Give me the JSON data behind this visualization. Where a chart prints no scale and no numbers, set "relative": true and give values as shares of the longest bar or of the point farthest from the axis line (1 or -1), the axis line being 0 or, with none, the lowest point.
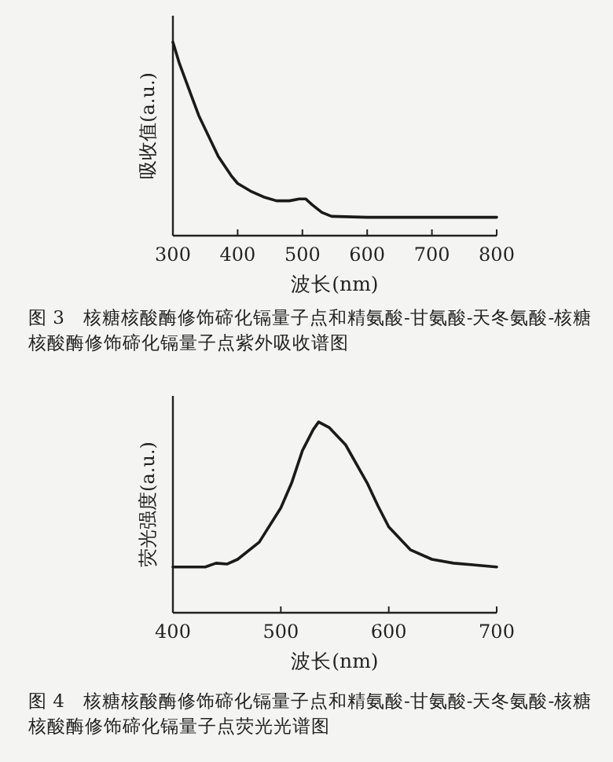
{
  "chart_data": [
    {
      "type": "line",
      "relative": true,
      "xlabel": "波长(nm)",
      "ylabel": "吸收值(a.u.)",
      "xlim": [
        300,
        800
      ],
      "xticks": [
        300,
        400,
        500,
        600,
        700,
        800
      ],
      "series": [
        {
          "color": "#1a1a1a",
          "x": [
            300,
            310,
            320,
            330,
            340,
            350,
            360,
            370,
            380,
            390,
            400,
            420,
            440,
            460,
            480,
            495,
            505,
            515,
            530,
            545,
            600,
            700,
            800
          ],
          "values": [
            1.0,
            0.89,
            0.8,
            0.71,
            0.62,
            0.55,
            0.48,
            0.41,
            0.36,
            0.31,
            0.27,
            0.23,
            0.2,
            0.18,
            0.18,
            0.19,
            0.19,
            0.16,
            0.12,
            0.1,
            0.095,
            0.095,
            0.095
          ]
        }
      ],
      "annotations": [
        "图 3　核糖核酸酶修饰碲化镉量子点和精氨酸-甘氨酸-天冬氨酸-核糖核酸酶修饰碲化镉量子点紫外吸收谱图"
      ]
    },
    {
      "type": "line",
      "relative": true,
      "xlabel": "波长(nm)",
      "ylabel": "荧光强度(a.u.)",
      "xlim": [
        400,
        700
      ],
      "xticks": [
        400,
        500,
        600,
        700
      ],
      "series": [
        {
          "color": "#1a1a1a",
          "x": [
            400,
            430,
            440,
            450,
            460,
            480,
            500,
            510,
            520,
            530,
            535,
            545,
            560,
            580,
            590,
            600,
            620,
            640,
            660,
            680,
            700
          ],
          "values": [
            0.24,
            0.24,
            0.26,
            0.255,
            0.28,
            0.37,
            0.55,
            0.68,
            0.85,
            0.96,
            1.0,
            0.97,
            0.88,
            0.68,
            0.56,
            0.45,
            0.33,
            0.28,
            0.26,
            0.25,
            0.24
          ]
        }
      ],
      "annotations": [
        "图 4　核糖核酸酶修饰碲化镉量子点和精氨酸-甘氨酸-天冬氨酸-核糖核酸酶修饰碲化镉量子点荧光光谱图"
      ]
    }
  ]
}
